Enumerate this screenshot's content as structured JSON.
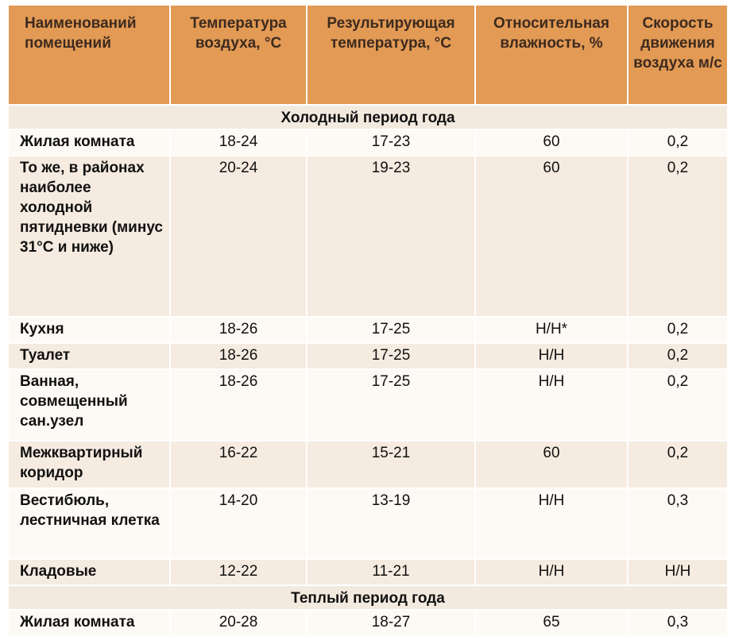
{
  "header": {
    "col1": "Наименований помещений",
    "col2": "Температура воздуха, °С",
    "col3": "Результирующая температура, °С",
    "col4": "Относительная влажность, %",
    "col5": "Скорость движения воздуха м/с"
  },
  "sections": {
    "cold": "Холодный период года",
    "warm": "Теплый период года"
  },
  "rows": [
    {
      "name": "Жилая комната",
      "temp": "18-24",
      "result": "17-23",
      "humidity": "60",
      "speed": "0,2"
    },
    {
      "name": "То же, в районах наиболее холодной пятидневки (минус 31°С и ниже)",
      "temp": "20-24",
      "result": "19-23",
      "humidity": "60",
      "speed": "0,2"
    },
    {
      "name": "Кухня",
      "temp": "18-26",
      "result": "17-25",
      "humidity": "Н/Н*",
      "speed": "0,2"
    },
    {
      "name": "Туалет",
      "temp": "18-26",
      "result": "17-25",
      "humidity": "Н/Н",
      "speed": "0,2"
    },
    {
      "name": "Ванная, совмещенный сан.узел",
      "temp": "18-26",
      "result": "17-25",
      "humidity": "Н/Н",
      "speed": "0,2"
    },
    {
      "name": "Межквартирный коридор",
      "temp": "16-22",
      "result": "15-21",
      "humidity": "60",
      "speed": "0,2"
    },
    {
      "name": "Вестибюль, лестничная клетка",
      "temp": "14-20",
      "result": "13-19",
      "humidity": "Н/Н",
      "speed": "0,3"
    },
    {
      "name": "Кладовые",
      "temp": "12-22",
      "result": "11-21",
      "humidity": "Н/Н",
      "speed": "Н/Н"
    }
  ],
  "warm_rows": [
    {
      "name": "Жилая комната",
      "temp": "20-28",
      "result": "18-27",
      "humidity": "65",
      "speed": "0,3"
    }
  ]
}
